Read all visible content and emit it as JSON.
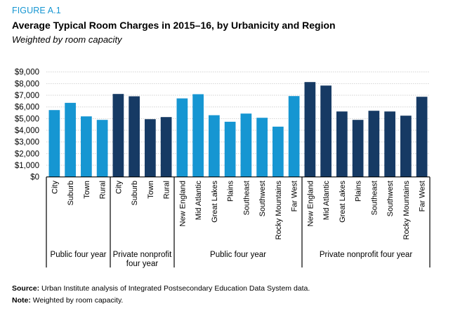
{
  "header": {
    "figure_label": "FIGURE A.1",
    "title": "Average Typical Room Charges in 2015–16, by Urbanicity and Region",
    "subtitle": "Weighted by room capacity"
  },
  "footer": {
    "source_label": "Source:",
    "source_text": " Urban Institute analysis of Integrated Postsecondary Education Data System data.",
    "note_label": "Note:",
    "note_text": " Weighted by room capacity."
  },
  "colors": {
    "public": "#1696d2",
    "private": "#163a64",
    "figure_label": "#1696d2"
  },
  "chart_data": {
    "type": "bar",
    "title": "Average Typical Room Charges in 2015–16, by Urbanicity and Region",
    "subtitle": "Weighted by room capacity",
    "xlabel": "",
    "ylabel": "",
    "ylim": [
      0,
      9000
    ],
    "yticks": [
      0,
      1000,
      2000,
      3000,
      4000,
      5000,
      6000,
      7000,
      8000,
      9000
    ],
    "ytick_labels": [
      "$0",
      "$1,000",
      "$2,000",
      "$3,000",
      "$4,000",
      "$5,000",
      "$6,000",
      "$7,000",
      "$8,000",
      "$9,000"
    ],
    "grid": true,
    "legend": "none",
    "groups": [
      {
        "name": "Public four year",
        "sector": "public",
        "categories": [
          "City",
          "Suburb",
          "Town",
          "Rural"
        ],
        "values": [
          5730,
          6350,
          5190,
          4890
        ]
      },
      {
        "name": "Private nonprofit four year",
        "name_lines": [
          "Private nonprofit",
          "four year"
        ],
        "sector": "private",
        "categories": [
          "City",
          "Suburb",
          "Town",
          "Rural"
        ],
        "values": [
          7110,
          6910,
          4950,
          5130
        ]
      },
      {
        "name": "Public four year",
        "sector": "public",
        "categories": [
          "New England",
          "Mid Atlantic",
          "Great Lakes",
          "Plains",
          "Southeast",
          "Southwest",
          "Rocky Mountains",
          "Far West"
        ],
        "values": [
          6730,
          7090,
          5290,
          4730,
          5430,
          5070,
          4310,
          6930
        ]
      },
      {
        "name": "Private nonprofit four year",
        "sector": "private",
        "categories": [
          "New England",
          "Mid Atlantic",
          "Great Lakes",
          "Plains",
          "Southeast",
          "Southwest",
          "Rocky Mountains",
          "Far West"
        ],
        "values": [
          8130,
          7830,
          5610,
          4890,
          5670,
          5610,
          5250,
          6870
        ]
      }
    ]
  }
}
